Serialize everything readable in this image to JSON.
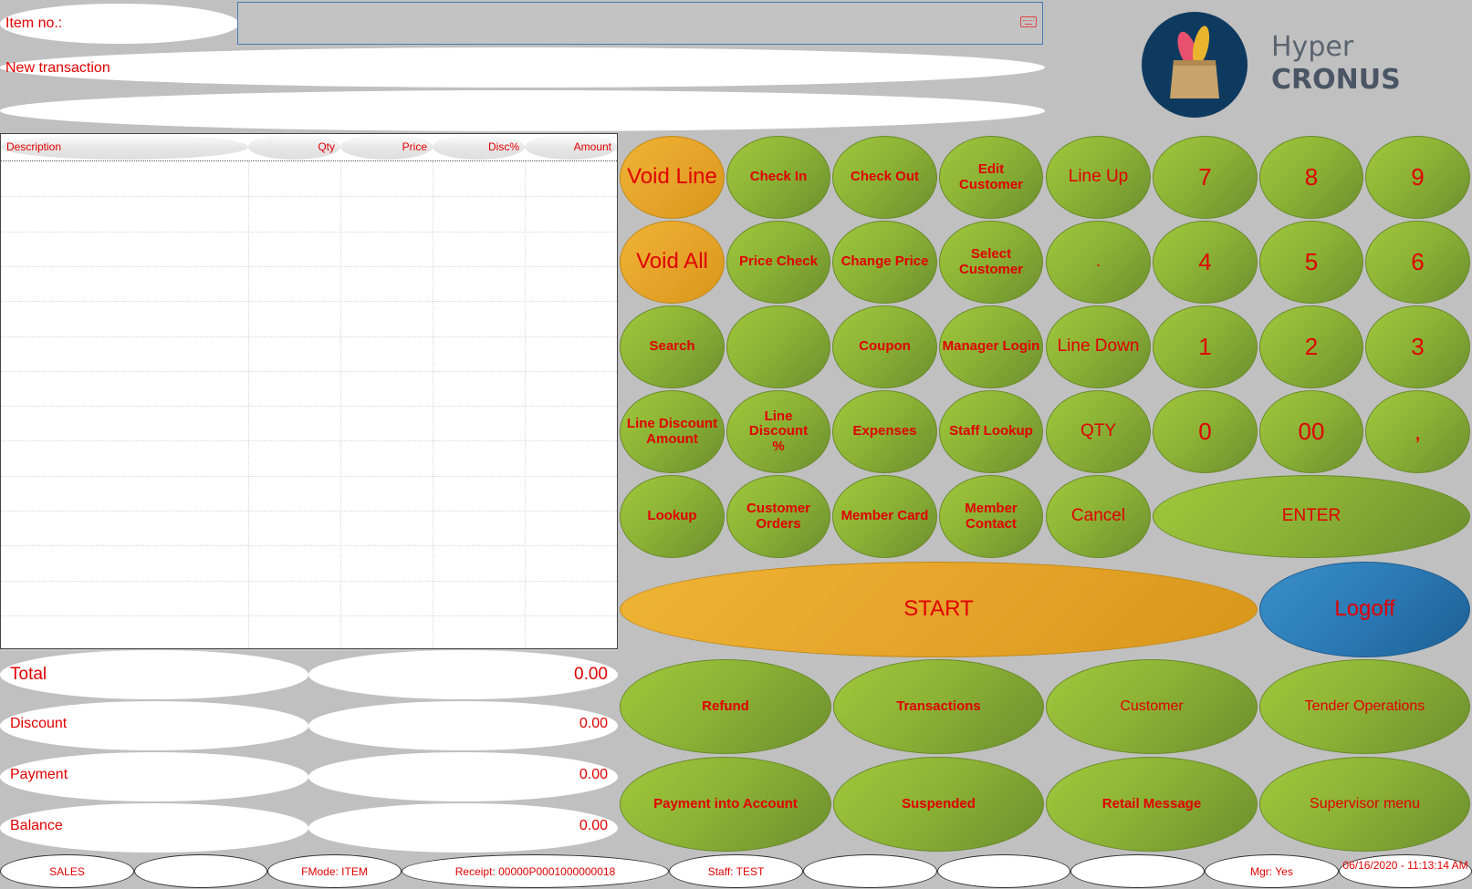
{
  "header": {
    "item_label": "Item no.:",
    "item_value": "",
    "info_line_1": "New transaction",
    "info_line_2": ""
  },
  "logo": {
    "line1": "Hyper",
    "line2": "CRONUS"
  },
  "grid": {
    "columns": [
      "Description",
      "Qty",
      "Price",
      "Disc%",
      "Amount"
    ],
    "rows": []
  },
  "totals": [
    {
      "label": "Total",
      "value": "0.00"
    },
    {
      "label": "Discount",
      "value": "0.00"
    },
    {
      "label": "Payment",
      "value": "0.00"
    },
    {
      "label": "Balance",
      "value": "0.00"
    }
  ],
  "buttons": {
    "void_line": "Void Line",
    "void_all": "Void All",
    "search": "Search",
    "line_discount_amount": "Line Discount Amount",
    "lookup": "Lookup",
    "check_in": "Check In",
    "price_check": "Price Check",
    "blank": "",
    "line_discount_pct": "Line Discount %",
    "customer_orders": "Customer Orders",
    "check_out": "Check Out",
    "change_price": "Change Price",
    "coupon": "Coupon",
    "expenses": "Expenses",
    "member_card": "Member Card",
    "edit_customer": "Edit Customer",
    "select_customer": "Select Customer",
    "manager_login": "Manager Login",
    "staff_lookup": "Staff Lookup",
    "member_contact": "Member Contact",
    "line_up": "Line Up",
    "dot": ".",
    "line_down": "Line Down",
    "qty": "QTY",
    "cancel": "Cancel",
    "k7": "7",
    "k8": "8",
    "k9": "9",
    "k4": "4",
    "k5": "5",
    "k6": "6",
    "k1": "1",
    "k2": "2",
    "k3": "3",
    "k0": "0",
    "k00": "00",
    "comma": ",",
    "enter": "ENTER",
    "start": "START",
    "logoff": "Logoff",
    "refund": "Refund",
    "transactions": "Transactions",
    "customer": "Customer",
    "tender_operations": "Tender Operations",
    "payment_into_account": "Payment into Account",
    "suspended": "Suspended",
    "retail_message": "Retail Message",
    "supervisor_menu": "Supervisor menu"
  },
  "status_bar": {
    "mode": "SALES",
    "s2": "",
    "fmode": "FMode: ITEM",
    "receipt": "Receipt: 00000P0001000000018",
    "staff": "Staff: TEST",
    "s6": "",
    "s7": "",
    "s8": "",
    "mgr": "Mgr: Yes",
    "datetime": "06/16/2020 - 11:13:14 AM"
  },
  "colors": {
    "background": "#c0c0c0",
    "text": "#e00000",
    "green_button": "#8cb335",
    "orange_button": "#e6a42a",
    "blue_button": "#2b7ab6",
    "logo_circle": "#0f3a5f"
  }
}
